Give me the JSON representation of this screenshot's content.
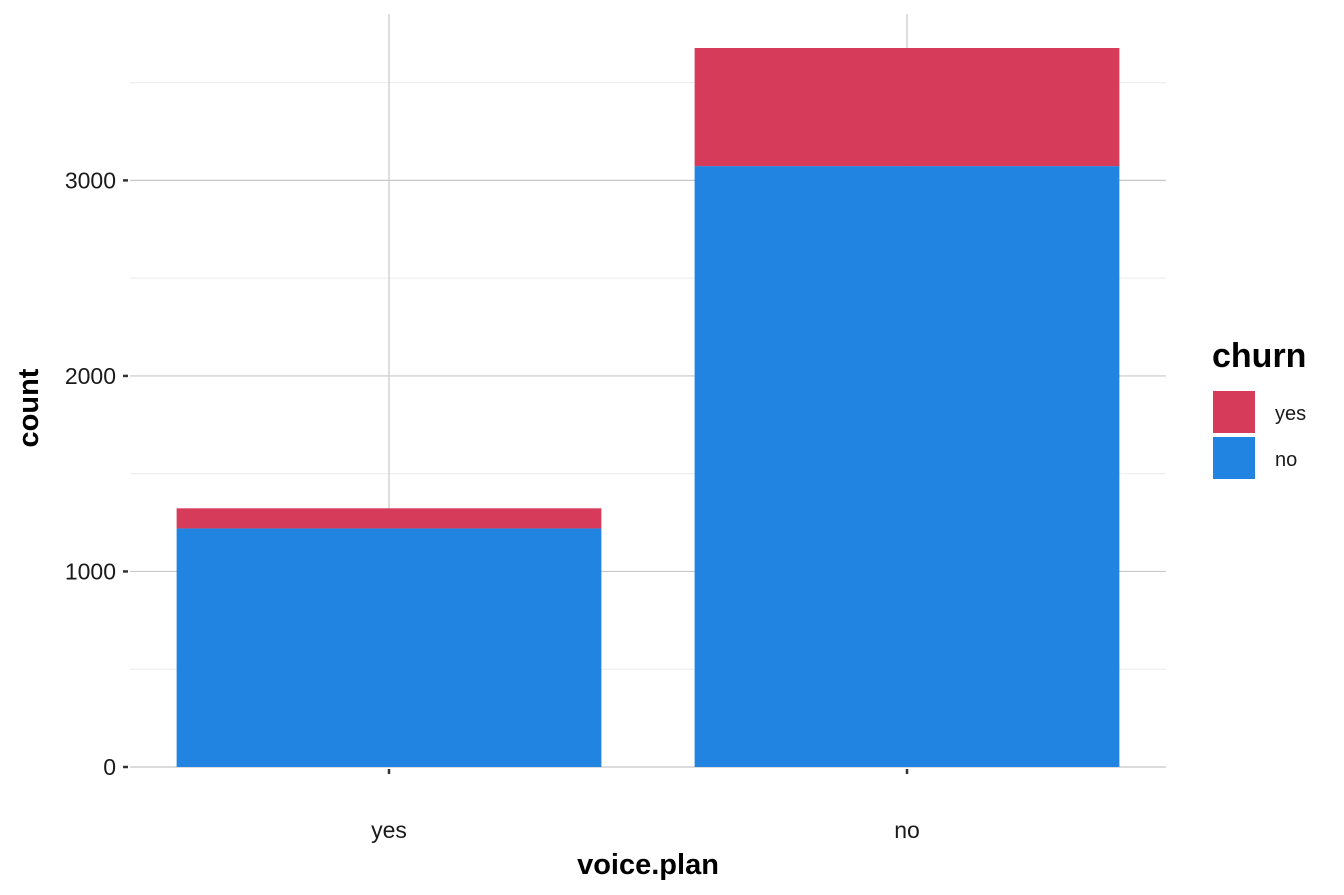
{
  "chart_data": {
    "type": "bar",
    "stacked": true,
    "title": "",
    "xlabel": "voice.plan",
    "ylabel": "count",
    "categories": [
      "yes",
      "no"
    ],
    "series": [
      {
        "name": "no",
        "values": [
          1220,
          3073
        ],
        "color": "#2084E0"
      },
      {
        "name": "yes",
        "values": [
          103,
          604
        ],
        "color": "#D63B5A"
      }
    ],
    "ylim": [
      0,
      3677
    ],
    "yticks": [
      0,
      1000,
      2000,
      3000
    ],
    "ytick_labels": [
      "0",
      "1000",
      "2000",
      "3000"
    ],
    "grid": true,
    "legend": {
      "title": "churn",
      "placement": "right",
      "entries": [
        {
          "label": "yes",
          "color": "#D63B5A"
        },
        {
          "label": "no",
          "color": "#2084E0"
        }
      ]
    }
  }
}
